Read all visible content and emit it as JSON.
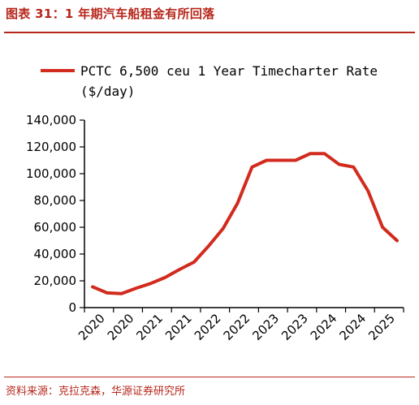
{
  "header": {
    "title": "图表 31：1 年期汽车船租金有所回落"
  },
  "footer": {
    "source": "资料来源：克拉克森，华源证券研究所"
  },
  "chart_data": {
    "type": "line",
    "legend_line1": "PCTC 6,500 ceu 1 Year Timecharter Rate",
    "legend_line2": "($/day)",
    "series": [
      {
        "name": "PCTC 6,500 ceu 1 Year Timecharter Rate ($/day)",
        "color": "#d22b1e",
        "values": [
          15500,
          11000,
          10500,
          14500,
          18000,
          22500,
          28500,
          34000,
          46000,
          59000,
          78000,
          105000,
          110000,
          110000,
          110000,
          115000,
          115000,
          107000,
          105000,
          87000,
          60000,
          50000
        ]
      }
    ],
    "x_tick_labels": [
      "2020",
      "2020",
      "2021",
      "2021",
      "2022",
      "2022",
      "2023",
      "2023",
      "2024",
      "2024",
      "2025"
    ],
    "y_tick_labels": [
      "0",
      "20,000",
      "40,000",
      "60,000",
      "80,000",
      "100,000",
      "120,000",
      "140,000"
    ],
    "ylim": [
      0,
      140000
    ],
    "grid": false,
    "legend_position": "top"
  }
}
